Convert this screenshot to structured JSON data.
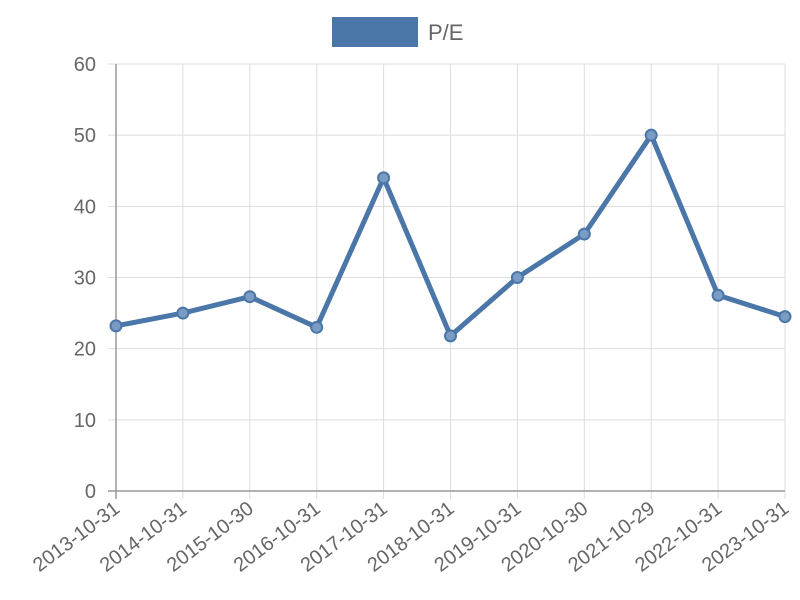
{
  "chart_data": {
    "type": "line",
    "categories": [
      "2013-10-31",
      "2014-10-31",
      "2015-10-30",
      "2016-10-31",
      "2017-10-31",
      "2018-10-31",
      "2019-10-31",
      "2020-10-30",
      "2021-10-29",
      "2022-10-31",
      "2023-10-31"
    ],
    "series": [
      {
        "name": "P/E",
        "values": [
          23.2,
          25.0,
          27.3,
          23.0,
          44.0,
          21.8,
          30.0,
          36.1,
          50.0,
          27.5,
          24.5
        ],
        "color": "#4a76a8"
      }
    ],
    "yticks": [
      0,
      10,
      20,
      30,
      40,
      50,
      60
    ],
    "ylim": [
      0,
      60
    ],
    "grid": true,
    "legend_position": "top-center"
  }
}
